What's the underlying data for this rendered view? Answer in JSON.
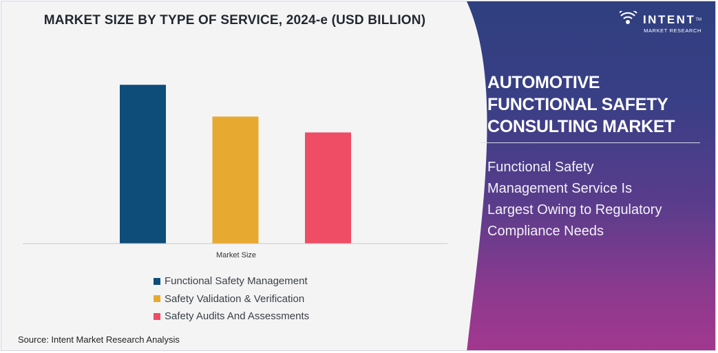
{
  "chart_data": {
    "type": "bar",
    "title": "MARKET SIZE BY TYPE OF SERVICE, 2024-e (USD BILLION)",
    "xlabel": "Market Size",
    "ylabel": "",
    "categories": [
      "Market Size"
    ],
    "series": [
      {
        "name": "Functional Safety Management",
        "color": "#0e4d7a",
        "values": [
          10.0
        ]
      },
      {
        "name": "Safety Validation & Verification",
        "color": "#e8a931",
        "values": [
          8.0
        ]
      },
      {
        "name": "Safety Audits And Assessments",
        "color": "#ef4c66",
        "values": [
          7.0
        ]
      }
    ],
    "ylim": [
      0,
      10.4
    ],
    "grid": false,
    "legend_position": "bottom"
  },
  "footer": {
    "source": "Source: Intent Market Research Analysis"
  },
  "sidebar": {
    "logo": {
      "brand": "INTENT",
      "tm": "TM",
      "sub": "MARKET RESEARCH",
      "icon": "wifi-signal-icon"
    },
    "report_title_lines": [
      "AUTOMOTIVE",
      "FUNCTIONAL SAFETY",
      "CONSULTING MARKET"
    ],
    "insight_lines": [
      "Functional Safety",
      "Management Service Is",
      "Largest Owing to Regulatory",
      "Compliance Needs"
    ],
    "gradient": [
      "#2f3f7f",
      "#a2378f"
    ]
  }
}
